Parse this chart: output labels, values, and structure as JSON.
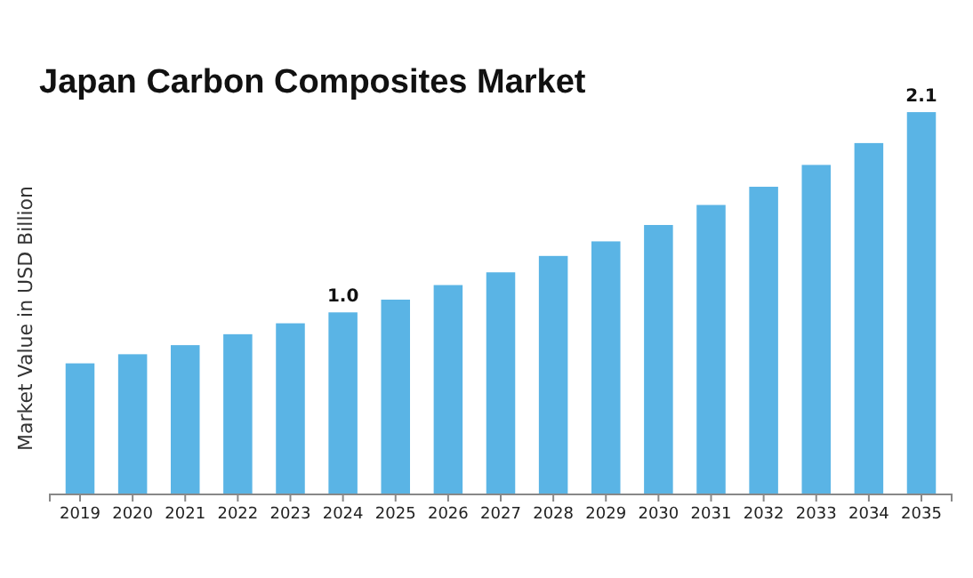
{
  "chart_data": {
    "type": "bar",
    "title": "Japan Carbon Composites Market",
    "ylabel": "Market Value in USD Billion",
    "categories": [
      "2019",
      "2020",
      "2021",
      "2022",
      "2023",
      "2024",
      "2025",
      "2026",
      "2027",
      "2028",
      "2029",
      "2030",
      "2031",
      "2032",
      "2033",
      "2034",
      "2035"
    ],
    "values": [
      0.72,
      0.77,
      0.82,
      0.88,
      0.94,
      1.0,
      1.07,
      1.15,
      1.22,
      1.31,
      1.39,
      1.48,
      1.59,
      1.69,
      1.81,
      1.93,
      2.1
    ],
    "value_labels": [
      null,
      null,
      null,
      null,
      null,
      "1.0",
      null,
      null,
      null,
      null,
      null,
      null,
      null,
      null,
      null,
      null,
      "2.1"
    ],
    "color": "#5ab4e5"
  }
}
